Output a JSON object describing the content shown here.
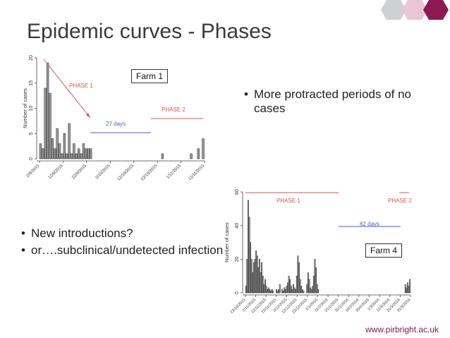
{
  "slide": {
    "title": "Epidemic curves - Phases",
    "footer_url": "www.pirbright.ac.uk",
    "bullets_top": [
      "More protracted periods of no cases"
    ],
    "bullets_left": [
      "New introductions?",
      "or….subclinical/undetected infection"
    ],
    "colors": {
      "title": "#3a3a3a",
      "brand": "#7a1a4a",
      "phase": "#d9534f",
      "gap": "#4a5fc1"
    }
  },
  "chart_data": [
    {
      "type": "bar",
      "box_label": "Farm 1",
      "ylabel": "Number of cases",
      "ylim": [
        0,
        20
      ],
      "yticks": [
        0,
        5,
        10,
        15,
        20
      ],
      "xticks": [
        "2/9/2015",
        "12/9/2015",
        "22/9/2015",
        "2/10/2015",
        "12/10/2015",
        "22/10/2015",
        "1/11/2015",
        "11/11/2015"
      ],
      "annotations": {
        "phase1": "PHASE 1",
        "phase2": "PHASE 2",
        "gap": "27 days"
      },
      "values": [
        3,
        2,
        14,
        19,
        13,
        4,
        2,
        6,
        3,
        1,
        5,
        1,
        7,
        1,
        3,
        1,
        2,
        1,
        3,
        2,
        2,
        2,
        0,
        0,
        0,
        0,
        0,
        0,
        0,
        0,
        0,
        0,
        0,
        0,
        0,
        0,
        0,
        0,
        0,
        0,
        0,
        0,
        0,
        0,
        0,
        0,
        0,
        0,
        0,
        0,
        0,
        1,
        0,
        0,
        0,
        0,
        0,
        0,
        0,
        0,
        0,
        0,
        0,
        1,
        0,
        0,
        2,
        0,
        4
      ]
    },
    {
      "type": "bar",
      "box_label": "Farm 4",
      "ylabel": "Number of cases",
      "ylim": [
        0,
        60
      ],
      "yticks": [
        0,
        20,
        40,
        60
      ],
      "xticks": [
        "23/10/2015",
        "2/11/2015",
        "12/11/2015",
        "22/11/2015",
        "2/12/2015",
        "12/12/2015",
        "22/12/2015",
        "1/1/2016",
        "11/1/2016",
        "21/1/2016",
        "31/1/2016",
        "10/2/2016",
        "20/2/2016",
        "1/3/2016",
        "11/3/2016",
        "21/3/2016",
        "31/3/2016"
      ],
      "annotations": {
        "phase1": "PHASE 1",
        "phase2": "PHASE 2",
        "gap": "62 days"
      },
      "values": [
        4,
        20,
        55,
        45,
        30,
        20,
        12,
        18,
        20,
        25,
        22,
        15,
        20,
        12,
        18,
        10,
        5,
        8,
        4,
        2,
        3,
        2,
        1,
        2,
        1,
        0,
        0,
        2,
        1,
        2,
        5,
        0,
        2,
        1,
        3,
        2,
        4,
        6,
        10,
        8,
        4,
        2,
        5,
        3,
        2,
        10,
        22,
        18,
        8,
        4,
        2,
        1,
        0,
        0,
        5,
        12,
        8,
        3,
        2,
        4,
        10,
        20,
        15,
        5,
        2,
        0,
        0,
        0,
        0,
        0,
        0,
        0,
        0,
        0,
        0,
        0,
        0,
        0,
        0,
        0,
        0,
        0,
        0,
        0,
        0,
        0,
        0,
        0,
        0,
        0,
        0,
        0,
        0,
        0,
        0,
        0,
        0,
        0,
        0,
        0,
        0,
        0,
        0,
        0,
        0,
        0,
        0,
        0,
        0,
        0,
        0,
        0,
        0,
        0,
        0,
        0,
        0,
        0,
        0,
        0,
        0,
        0,
        0,
        0,
        0,
        0,
        0,
        0,
        0,
        0,
        0,
        0,
        0,
        0,
        0,
        0,
        0,
        0,
        0,
        0,
        0,
        5,
        3,
        6,
        4,
        8
      ]
    }
  ]
}
